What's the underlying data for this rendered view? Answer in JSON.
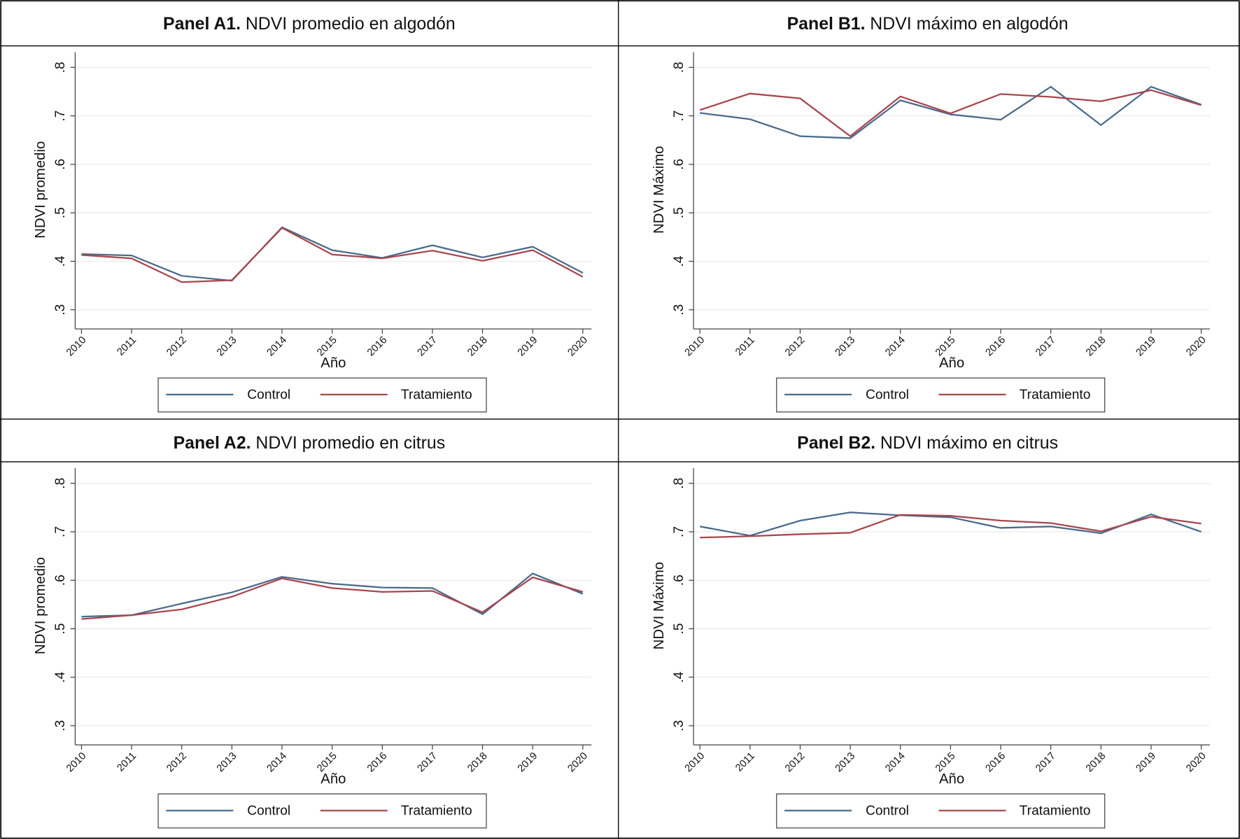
{
  "chart_data": [
    {
      "type": "line",
      "panel": "Panel A1.",
      "title": "NDVI promedio en algodón",
      "x_label": "Año",
      "y_label": "NDVI promedio",
      "categories": [
        "2010",
        "2011",
        "2012",
        "2013",
        "2014",
        "2015",
        "2016",
        "2017",
        "2018",
        "2019",
        "2020"
      ],
      "series": [
        {
          "name": "Control",
          "color": "#4a6a8a",
          "values": [
            0.415,
            0.412,
            0.37,
            0.36,
            0.47,
            0.423,
            0.407,
            0.433,
            0.408,
            0.43,
            0.376
          ]
        },
        {
          "name": "Tratamiento",
          "color": "#a8464f",
          "values": [
            0.413,
            0.406,
            0.357,
            0.361,
            0.469,
            0.414,
            0.406,
            0.422,
            0.401,
            0.423,
            0.368
          ]
        }
      ],
      "ylim": [
        0.28,
        0.815
      ],
      "yticks": [
        {
          "value": 0.3,
          "label": ".3"
        },
        {
          "value": 0.4,
          "label": ".4"
        },
        {
          "value": 0.5,
          "label": ".5"
        },
        {
          "value": 0.6,
          "label": ".6"
        },
        {
          "value": 0.7,
          "label": ".7"
        },
        {
          "value": 0.8,
          "label": ".8"
        }
      ],
      "grid": true
    },
    {
      "type": "line",
      "panel": "Panel B1.",
      "title": "NDVI máximo en algodón",
      "x_label": "Año",
      "y_label": "NDVI Máximo",
      "categories": [
        "2010",
        "2011",
        "2012",
        "2013",
        "2014",
        "2015",
        "2016",
        "2017",
        "2018",
        "2019",
        "2020"
      ],
      "series": [
        {
          "name": "Control",
          "color": "#4a6a8a",
          "values": [
            0.706,
            0.693,
            0.658,
            0.654,
            0.732,
            0.703,
            0.692,
            0.76,
            0.681,
            0.76,
            0.723
          ]
        },
        {
          "name": "Tratamiento",
          "color": "#a8464f",
          "values": [
            0.712,
            0.746,
            0.736,
            0.658,
            0.74,
            0.705,
            0.745,
            0.739,
            0.73,
            0.753,
            0.722
          ]
        }
      ],
      "ylim": [
        0.28,
        0.815
      ],
      "yticks": [
        {
          "value": 0.3,
          "label": ".3"
        },
        {
          "value": 0.4,
          "label": ".4"
        },
        {
          "value": 0.5,
          "label": ".5"
        },
        {
          "value": 0.6,
          "label": ".6"
        },
        {
          "value": 0.7,
          "label": ".7"
        },
        {
          "value": 0.8,
          "label": ".8"
        }
      ],
      "grid": true
    },
    {
      "type": "line",
      "panel": "Panel A2.",
      "title": "NDVI promedio en citrus",
      "x_label": "Año",
      "y_label": "NDVI promedio",
      "categories": [
        "2010",
        "2011",
        "2012",
        "2013",
        "2014",
        "2015",
        "2016",
        "2017",
        "2018",
        "2019",
        "2020"
      ],
      "series": [
        {
          "name": "Control",
          "color": "#4a6a8a",
          "values": [
            0.525,
            0.528,
            0.552,
            0.575,
            0.607,
            0.593,
            0.585,
            0.584,
            0.53,
            0.614,
            0.572
          ]
        },
        {
          "name": "Tratamiento",
          "color": "#a8464f",
          "values": [
            0.52,
            0.528,
            0.54,
            0.566,
            0.604,
            0.584,
            0.576,
            0.578,
            0.534,
            0.606,
            0.576
          ]
        }
      ],
      "ylim": [
        0.28,
        0.815
      ],
      "yticks": [
        {
          "value": 0.3,
          "label": ".3"
        },
        {
          "value": 0.4,
          "label": ".4"
        },
        {
          "value": 0.5,
          "label": ".5"
        },
        {
          "value": 0.6,
          "label": ".6"
        },
        {
          "value": 0.7,
          "label": ".7"
        },
        {
          "value": 0.8,
          "label": ".8"
        }
      ],
      "grid": true
    },
    {
      "type": "line",
      "panel": "Panel B2.",
      "title": "NDVI máximo en citrus",
      "x_label": "Año",
      "y_label": "NDVI Máximo",
      "categories": [
        "2010",
        "2011",
        "2012",
        "2013",
        "2014",
        "2015",
        "2016",
        "2017",
        "2018",
        "2019",
        "2020"
      ],
      "series": [
        {
          "name": "Control",
          "color": "#4a6a8a",
          "values": [
            0.711,
            0.692,
            0.723,
            0.74,
            0.734,
            0.73,
            0.708,
            0.711,
            0.697,
            0.736,
            0.7
          ]
        },
        {
          "name": "Tratamiento",
          "color": "#a8464f",
          "values": [
            0.688,
            0.691,
            0.695,
            0.698,
            0.735,
            0.733,
            0.723,
            0.718,
            0.701,
            0.731,
            0.717
          ]
        }
      ],
      "ylim": [
        0.28,
        0.815
      ],
      "yticks": [
        {
          "value": 0.3,
          "label": ".3"
        },
        {
          "value": 0.4,
          "label": ".4"
        },
        {
          "value": 0.5,
          "label": ".5"
        },
        {
          "value": 0.6,
          "label": ".6"
        },
        {
          "value": 0.7,
          "label": ".7"
        },
        {
          "value": 0.8,
          "label": ".8"
        }
      ],
      "grid": true
    }
  ]
}
